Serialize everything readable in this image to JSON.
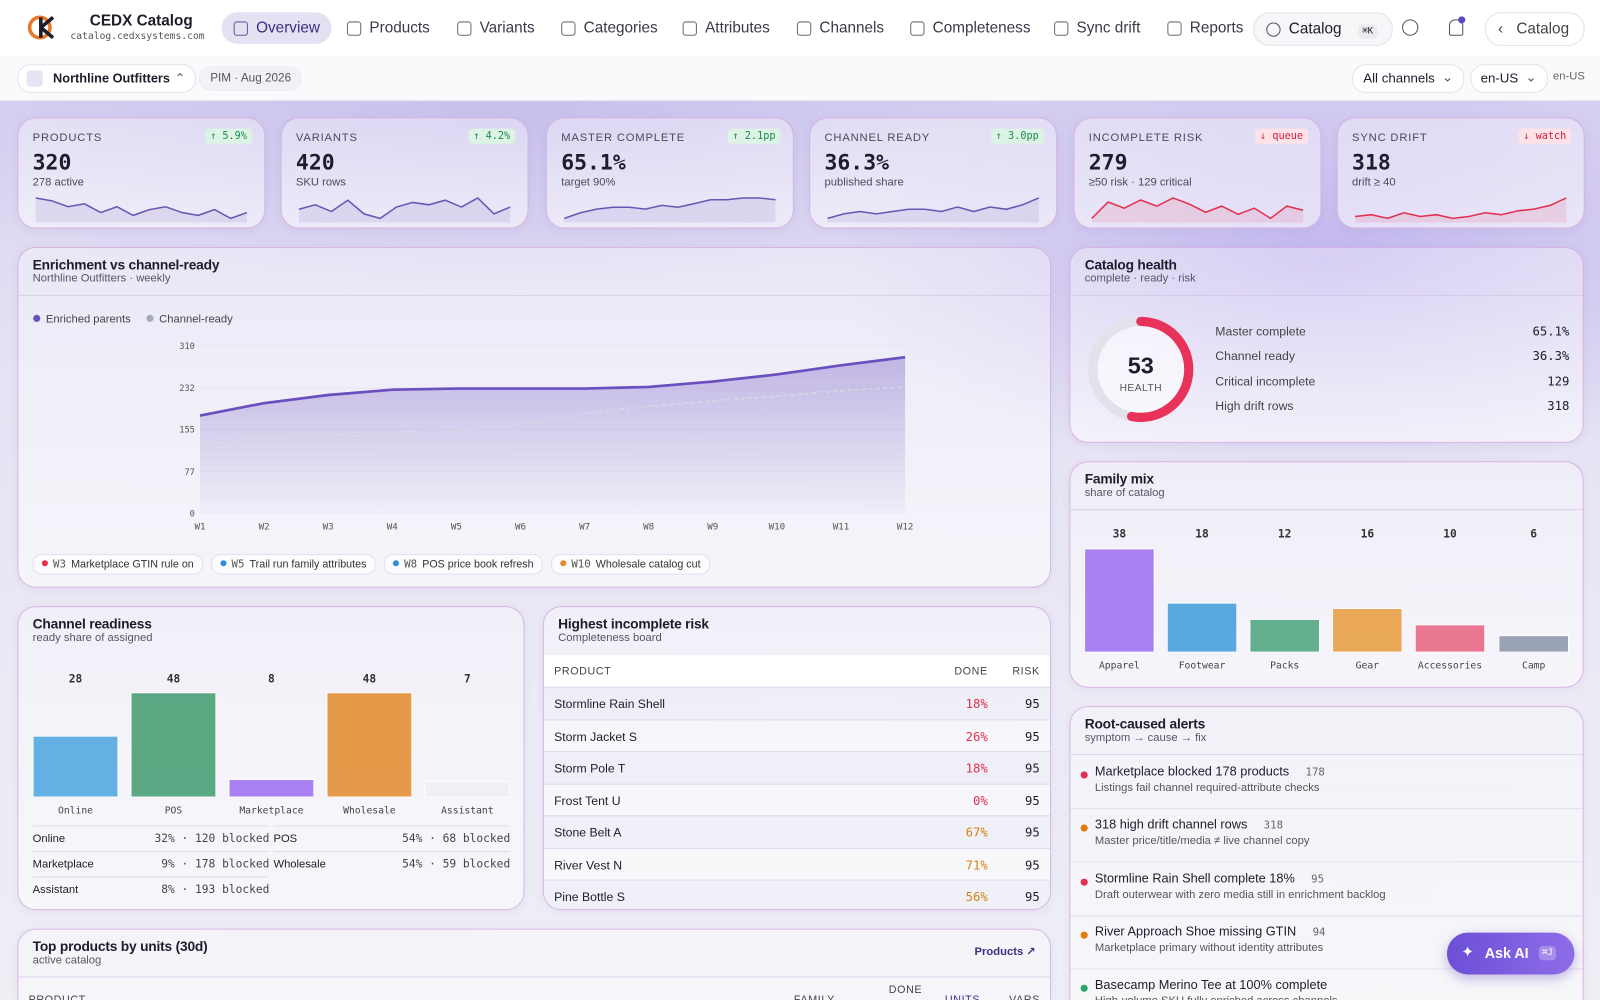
{
  "nav": {
    "brand": "CEDX Catalog",
    "domain": "catalog.cedxsystems.com",
    "items": [
      "Overview",
      "Products",
      "Variants",
      "Categories",
      "Attributes",
      "Channels",
      "Completeness",
      "Sync drift",
      "Reports"
    ],
    "active_item": 0,
    "search": "Catalog",
    "search_shortcut": "⌘K",
    "back": "Catalog"
  },
  "subbar": {
    "workspace": "Northline Outfitters",
    "period": "PIM · Aug 2026",
    "channel_filter": "All channels",
    "locale": "en-US",
    "locale_note": "en-US"
  },
  "kpis": [
    {
      "label": "PRODUCTS",
      "value": "320",
      "note": "278 active",
      "delta": "↑ 5.9%",
      "trend": "up",
      "color": "#6a55b5",
      "spark": [
        50,
        49,
        47,
        48,
        45,
        47,
        44,
        46,
        47,
        45,
        44,
        46,
        43,
        45
      ]
    },
    {
      "label": "VARIANTS",
      "value": "420",
      "note": "SKU rows",
      "delta": "↑ 4.2%",
      "trend": "up",
      "color": "#6a55b5",
      "spark": [
        40,
        42,
        39,
        44,
        38,
        36,
        41,
        43,
        42,
        44,
        41,
        45,
        38,
        41
      ]
    },
    {
      "label": "MASTER COMPLETE",
      "value": "65.1%",
      "note": "target 90%",
      "delta": "↑ 2.1pp",
      "trend": "up",
      "color": "#6a55b5",
      "spark": [
        30,
        33,
        35,
        36,
        36,
        35,
        37,
        36,
        38,
        40,
        40,
        41,
        41,
        40
      ]
    },
    {
      "label": "CHANNEL READY",
      "value": "36.3%",
      "note": "published share",
      "delta": "↑ 3.0pp",
      "trend": "up",
      "color": "#6a55b5",
      "spark": [
        30,
        32,
        33,
        32,
        33,
        34,
        34,
        33,
        35,
        33,
        35,
        34,
        36,
        39
      ]
    },
    {
      "label": "INCOMPLETE RISK",
      "value": "279",
      "note": "≥50 risk · 129 critical",
      "delta": "↓ queue",
      "trend": "down",
      "color": "#e3304f",
      "spark": [
        30,
        38,
        35,
        39,
        36,
        40,
        37,
        33,
        36,
        32,
        35,
        30,
        36,
        34
      ]
    },
    {
      "label": "SYNC DRIFT",
      "value": "318",
      "note": "drift ≥ 40",
      "delta": "↓ watch",
      "trend": "down",
      "color": "#e3304f",
      "spark": [
        32,
        33,
        31,
        34,
        32,
        33,
        31,
        32,
        34,
        33,
        35,
        36,
        38,
        42
      ]
    }
  ],
  "chart_data": [
    {
      "type": "line",
      "title": "Enrichment vs channel-ready",
      "subtitle": "Northline Outfitters · weekly",
      "categories": [
        "W1",
        "W2",
        "W3",
        "W4",
        "W5",
        "W6",
        "W7",
        "W8",
        "W9",
        "W10",
        "W11",
        "W12"
      ],
      "series": [
        {
          "name": "Enriched parents",
          "color": "#6a4fbf",
          "values": [
            181,
            204,
            219,
            229,
            231,
            231,
            231,
            234,
            244,
            257,
            274,
            289
          ]
        },
        {
          "name": "Channel-ready",
          "color": "#a3abbd",
          "dashed": true,
          "values": [
            132,
            140,
            147,
            149,
            153,
            164,
            185,
            198,
            208,
            217,
            227,
            234
          ]
        }
      ],
      "ylim": [
        0,
        310
      ],
      "yticks": [
        0,
        77,
        155,
        232,
        310
      ],
      "annotations": [
        {
          "week": "W3",
          "text": "Marketplace GTIN rule on",
          "color": "#e3304f"
        },
        {
          "week": "W5",
          "text": "Trail run family attributes",
          "color": "#2f8fd8"
        },
        {
          "week": "W8",
          "text": "POS price book refresh",
          "color": "#2f8fd8"
        },
        {
          "week": "W10",
          "text": "Wholesale catalog cut",
          "color": "#e08a2a"
        }
      ]
    },
    {
      "type": "bar",
      "title": "Family mix",
      "subtitle": "share of catalog",
      "categories": [
        "Apparel",
        "Footwear",
        "Packs",
        "Gear",
        "Accessories",
        "Camp"
      ],
      "values": [
        38,
        18,
        12,
        16,
        10,
        6
      ],
      "colors": [
        "#9b6cf0",
        "#3d9ad9",
        "#4aa37a",
        "#e89a3c",
        "#e8607f",
        "#8a93a8"
      ]
    },
    {
      "type": "bar",
      "title": "Channel readiness",
      "subtitle": "ready share of assigned",
      "categories": [
        "Online",
        "POS",
        "Marketplace",
        "Wholesale",
        "Assistant"
      ],
      "values": [
        28,
        48,
        8,
        48,
        7
      ],
      "colors": [
        "#4aa3df",
        "#3e9b6e",
        "#9b6cf0",
        "#e08a2a",
        "#eceef5"
      ],
      "breakdown": [
        {
          "channel": "Online",
          "stat": "32% · 120 blocked"
        },
        {
          "channel": "POS",
          "stat": "54% · 68 blocked"
        },
        {
          "channel": "Marketplace",
          "stat": "9% · 178 blocked"
        },
        {
          "channel": "Wholesale",
          "stat": "54% · 59 blocked"
        },
        {
          "channel": "Assistant",
          "stat": "8% · 193 blocked"
        }
      ]
    }
  ],
  "catalog_health": {
    "title": "Catalog health",
    "subtitle": "complete · ready · risk",
    "score": 53,
    "score_label": "HEALTH",
    "metrics": [
      {
        "label": "Master complete",
        "value": "65.1%"
      },
      {
        "label": "Channel ready",
        "value": "36.3%"
      },
      {
        "label": "Critical incomplete",
        "value": "129"
      },
      {
        "label": "High drift rows",
        "value": "318"
      }
    ]
  },
  "risk_table": {
    "title": "Highest incomplete risk",
    "subtitle": "Completeness board",
    "columns": [
      "PRODUCT",
      "DONE",
      "RISK"
    ],
    "rows": [
      {
        "product": "Stormline Rain Shell",
        "done": "18%",
        "risk": "95",
        "color": "#e3304f"
      },
      {
        "product": "Storm Jacket S",
        "done": "26%",
        "risk": "95",
        "color": "#e3304f"
      },
      {
        "product": "Storm Pole T",
        "done": "18%",
        "risk": "95",
        "color": "#e3304f"
      },
      {
        "product": "Frost Tent U",
        "done": "0%",
        "risk": "95",
        "color": "#e3304f"
      },
      {
        "product": "Stone Belt A",
        "done": "67%",
        "risk": "95",
        "color": "#d98410"
      },
      {
        "product": "River Vest N",
        "done": "71%",
        "risk": "95",
        "color": "#d98410"
      },
      {
        "product": "Pine Bottle S",
        "done": "56%",
        "risk": "95",
        "color": "#d98410"
      }
    ]
  },
  "alerts": {
    "title": "Root-caused alerts",
    "subtitle": "symptom → cause → fix",
    "items": [
      {
        "title": "Marketplace blocked 178 products",
        "count": "178",
        "detail": "Listings fail channel required-attribute checks",
        "color": "#e3304f"
      },
      {
        "title": "318 high drift channel rows",
        "count": "318",
        "detail": "Master price/title/media ≠ live channel copy",
        "color": "#e07a10"
      },
      {
        "title": "Stormline Rain Shell complete 18%",
        "count": "95",
        "detail": "Draft outerwear with zero media still in enrichment backlog",
        "color": "#e3304f"
      },
      {
        "title": "River Approach Shoe missing GTIN",
        "count": "94",
        "detail": "Marketplace primary without identity attributes",
        "color": "#e07a10"
      },
      {
        "title": "Basecamp Merino Tee at 100% complete",
        "detail": "High-volume SKU fully enriched across channels",
        "color": "#2aa56a"
      }
    ]
  },
  "top_products": {
    "title": "Top products by units (30d)",
    "subtitle": "active catalog",
    "link": "Products ↗",
    "columns": [
      "PRODUCT",
      "FAMILY",
      "DONE",
      "UNITS",
      "VARS"
    ],
    "sorted_column": 3
  },
  "assistant": {
    "label": "Ask AI",
    "shortcut": "⌘J"
  }
}
